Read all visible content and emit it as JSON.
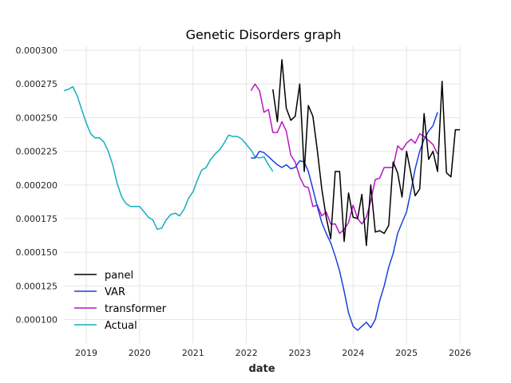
{
  "chart_data": {
    "type": "line",
    "title": "Genetic Disorders graph",
    "xlabel": "date",
    "ylabel": "",
    "xlim": [
      "2018-08-01",
      "2026-01-01"
    ],
    "ylim": [
      8.25e-05,
      0.000303
    ],
    "x_ticks": [
      {
        "date": "2019-01-01",
        "label": "2019"
      },
      {
        "date": "2020-01-01",
        "label": "2020"
      },
      {
        "date": "2021-01-01",
        "label": "2021"
      },
      {
        "date": "2022-01-01",
        "label": "2022"
      },
      {
        "date": "2023-01-01",
        "label": "2023"
      },
      {
        "date": "2024-01-01",
        "label": "2024"
      },
      {
        "date": "2025-01-01",
        "label": "2025"
      },
      {
        "date": "2026-01-01",
        "label": "2026"
      }
    ],
    "y_ticks": [
      {
        "value": 0.0001,
        "label": "0.000100"
      },
      {
        "value": 0.000125,
        "label": "0.000125"
      },
      {
        "value": 0.00015,
        "label": "0.000150"
      },
      {
        "value": 0.000175,
        "label": "0.000175"
      },
      {
        "value": 0.0002,
        "label": "0.000200"
      },
      {
        "value": 0.000225,
        "label": "0.000225"
      },
      {
        "value": 0.00025,
        "label": "0.000250"
      },
      {
        "value": 0.000275,
        "label": "0.000275"
      },
      {
        "value": 0.0003,
        "label": "0.000300"
      }
    ],
    "grid": true,
    "legend_position": "lower-left",
    "series": [
      {
        "name": "panel",
        "color": "#000000",
        "x": [
          "2022-07-01",
          "2022-08-01",
          "2022-09-01",
          "2022-10-01",
          "2022-11-01",
          "2022-12-01",
          "2023-01-01",
          "2023-02-01",
          "2023-03-01",
          "2023-04-01",
          "2023-05-01",
          "2023-06-01",
          "2023-07-01",
          "2023-08-01",
          "2023-09-01",
          "2023-10-01",
          "2023-11-01",
          "2023-12-01",
          "2024-01-01",
          "2024-02-01",
          "2024-03-01",
          "2024-04-01",
          "2024-05-01",
          "2024-06-01",
          "2024-07-01",
          "2024-08-01",
          "2024-09-01",
          "2024-10-01",
          "2024-11-01",
          "2024-12-01",
          "2025-01-01",
          "2025-02-01",
          "2025-03-01",
          "2025-04-01",
          "2025-05-01",
          "2025-06-01",
          "2025-07-01",
          "2025-08-01",
          "2025-09-01",
          "2025-10-01",
          "2025-11-01",
          "2025-12-01",
          "2026-01-01"
        ],
        "y": [
          0.000271,
          0.000247,
          0.000293,
          0.000257,
          0.000248,
          0.000251,
          0.000275,
          0.00021,
          0.000259,
          0.000251,
          0.000226,
          0.000197,
          0.000176,
          0.00016,
          0.00021,
          0.00021,
          0.000158,
          0.000194,
          0.000176,
          0.000175,
          0.000193,
          0.000155,
          0.0002,
          0.000165,
          0.000166,
          0.000164,
          0.00017,
          0.000217,
          0.000209,
          0.000191,
          0.000225,
          0.000208,
          0.000192,
          0.000197,
          0.000253,
          0.000219,
          0.000225,
          0.00021,
          0.000277,
          0.000209,
          0.000206,
          0.000241,
          0.000241
        ]
      },
      {
        "name": "VAR",
        "color": "#1a3fe0",
        "x": [
          "2022-02-01",
          "2022-03-01",
          "2022-04-01",
          "2022-05-01",
          "2022-06-01",
          "2022-07-01",
          "2022-08-01",
          "2022-09-01",
          "2022-10-01",
          "2022-11-01",
          "2022-12-01",
          "2023-01-01",
          "2023-02-01",
          "2023-03-01",
          "2023-04-01",
          "2023-05-01",
          "2023-06-01",
          "2023-07-01",
          "2023-08-01",
          "2023-09-01",
          "2023-10-01",
          "2023-11-01",
          "2023-12-01",
          "2024-01-01",
          "2024-02-01",
          "2024-03-01",
          "2024-04-01",
          "2024-05-01",
          "2024-06-01",
          "2024-07-01",
          "2024-08-01",
          "2024-09-01",
          "2024-10-01",
          "2024-11-01",
          "2024-12-01",
          "2025-01-01",
          "2025-02-01",
          "2025-03-01",
          "2025-04-01",
          "2025-05-01",
          "2025-06-01",
          "2025-07-01",
          "2025-08-01"
        ],
        "y": [
          0.00022,
          0.00022,
          0.000225,
          0.000224,
          0.000221,
          0.000218,
          0.000215,
          0.000213,
          0.000215,
          0.000212,
          0.000213,
          0.000218,
          0.000217,
          0.00021,
          0.000197,
          0.000184,
          0.000172,
          0.000164,
          0.000157,
          0.000147,
          0.000136,
          0.000121,
          0.000105,
          9.5e-05,
          9.2e-05,
          9.5e-05,
          9.8e-05,
          9.4e-05,
          0.0001,
          0.000114,
          0.000125,
          0.000139,
          0.000149,
          0.000164,
          0.000172,
          0.00018,
          0.000196,
          0.000212,
          0.000225,
          0.000234,
          0.00024,
          0.000244,
          0.000254
        ]
      },
      {
        "name": "transformer",
        "color": "#b817c2",
        "x": [
          "2022-02-01",
          "2022-03-01",
          "2022-04-01",
          "2022-05-01",
          "2022-06-01",
          "2022-07-01",
          "2022-08-01",
          "2022-09-01",
          "2022-10-01",
          "2022-11-01",
          "2022-12-01",
          "2023-01-01",
          "2023-02-01",
          "2023-03-01",
          "2023-04-01",
          "2023-05-01",
          "2023-06-01",
          "2023-07-01",
          "2023-08-01",
          "2023-09-01",
          "2023-10-01",
          "2023-11-01",
          "2023-12-01",
          "2024-01-01",
          "2024-02-01",
          "2024-03-01",
          "2024-04-01",
          "2024-05-01",
          "2024-06-01",
          "2024-07-01",
          "2024-08-01",
          "2024-09-01",
          "2024-10-01",
          "2024-11-01",
          "2024-12-01",
          "2025-01-01",
          "2025-02-01",
          "2025-03-01",
          "2025-04-01",
          "2025-05-01",
          "2025-06-01",
          "2025-07-01",
          "2025-08-01"
        ],
        "y": [
          0.00027,
          0.000275,
          0.00027,
          0.000254,
          0.000256,
          0.000239,
          0.000239,
          0.000247,
          0.00024,
          0.000222,
          0.000217,
          0.000206,
          0.000199,
          0.000198,
          0.000184,
          0.000185,
          0.000177,
          0.00018,
          0.000171,
          0.000171,
          0.000164,
          0.000167,
          0.000172,
          0.000185,
          0.000175,
          0.000171,
          0.000176,
          0.000188,
          0.000204,
          0.000205,
          0.000213,
          0.000213,
          0.000213,
          0.000229,
          0.000226,
          0.000231,
          0.000234,
          0.000231,
          0.000238,
          0.000236,
          0.000233,
          0.00023,
          0.000223
        ]
      },
      {
        "name": "Actual",
        "color": "#17aebd",
        "x": [
          "2018-08-01",
          "2018-09-01",
          "2018-10-01",
          "2018-11-01",
          "2018-12-01",
          "2019-01-01",
          "2019-02-01",
          "2019-03-01",
          "2019-04-01",
          "2019-05-01",
          "2019-06-01",
          "2019-07-01",
          "2019-08-01",
          "2019-09-01",
          "2019-10-01",
          "2019-11-01",
          "2019-12-01",
          "2020-01-01",
          "2020-02-01",
          "2020-03-01",
          "2020-04-01",
          "2020-05-01",
          "2020-06-01",
          "2020-07-01",
          "2020-08-01",
          "2020-09-01",
          "2020-10-01",
          "2020-11-01",
          "2020-12-01",
          "2021-01-01",
          "2021-02-01",
          "2021-03-01",
          "2021-04-01",
          "2021-05-01",
          "2021-06-01",
          "2021-07-01",
          "2021-08-01",
          "2021-09-01",
          "2021-10-01",
          "2021-11-01",
          "2021-12-01",
          "2022-01-01",
          "2022-02-01",
          "2022-03-01",
          "2022-04-01",
          "2022-05-01",
          "2022-06-01",
          "2022-07-01"
        ],
        "y": [
          0.00027,
          0.000271,
          0.000273,
          0.000266,
          0.000256,
          0.000246,
          0.000238,
          0.000235,
          0.000235,
          0.000232,
          0.000225,
          0.000215,
          0.000201,
          0.000191,
          0.000186,
          0.000184,
          0.000184,
          0.000184,
          0.00018,
          0.000176,
          0.000174,
          0.000167,
          0.000168,
          0.000174,
          0.000178,
          0.000179,
          0.000177,
          0.000182,
          0.00019,
          0.000195,
          0.000204,
          0.000211,
          0.000213,
          0.000219,
          0.000223,
          0.000226,
          0.000231,
          0.000237,
          0.000236,
          0.000236,
          0.000234,
          0.00023,
          0.000226,
          0.000221,
          0.00022,
          0.000221,
          0.000215,
          0.00021
        ]
      }
    ]
  }
}
